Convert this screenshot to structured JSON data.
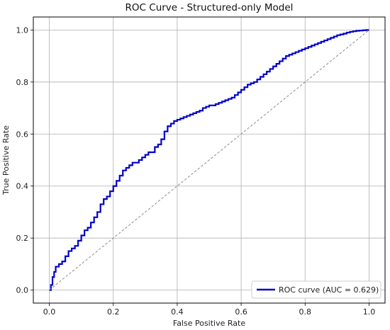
{
  "chart_data": {
    "type": "line",
    "title": "ROC Curve - Structured-only Model",
    "xlabel": "False Positive Rate",
    "ylabel": "True Positive Rate",
    "xlim": [
      -0.05,
      1.05
    ],
    "ylim": [
      -0.05,
      1.05
    ],
    "xticks": [
      "0.0",
      "0.2",
      "0.4",
      "0.6",
      "0.8",
      "1.0"
    ],
    "yticks": [
      "0.0",
      "0.2",
      "0.4",
      "0.6",
      "0.8",
      "1.0"
    ],
    "grid": true,
    "legend_position": "lower-right",
    "colors": {
      "roc": "#0000cc",
      "chance": "#808080"
    },
    "series": [
      {
        "name": "ROC curve (AUC = 0.629)",
        "style": "solid",
        "x": [
          0.0,
          0.005,
          0.01,
          0.015,
          0.02,
          0.03,
          0.04,
          0.05,
          0.06,
          0.07,
          0.08,
          0.09,
          0.1,
          0.11,
          0.12,
          0.13,
          0.14,
          0.15,
          0.16,
          0.17,
          0.18,
          0.19,
          0.2,
          0.21,
          0.22,
          0.23,
          0.24,
          0.25,
          0.26,
          0.27,
          0.28,
          0.29,
          0.3,
          0.31,
          0.32,
          0.33,
          0.34,
          0.35,
          0.36,
          0.37,
          0.38,
          0.39,
          0.4,
          0.41,
          0.42,
          0.43,
          0.44,
          0.45,
          0.46,
          0.47,
          0.48,
          0.49,
          0.5,
          0.51,
          0.52,
          0.53,
          0.54,
          0.55,
          0.56,
          0.57,
          0.58,
          0.59,
          0.6,
          0.61,
          0.62,
          0.63,
          0.64,
          0.65,
          0.66,
          0.67,
          0.68,
          0.69,
          0.7,
          0.71,
          0.72,
          0.73,
          0.74,
          0.75,
          0.76,
          0.77,
          0.78,
          0.79,
          0.8,
          0.81,
          0.82,
          0.83,
          0.84,
          0.85,
          0.86,
          0.87,
          0.88,
          0.89,
          0.9,
          0.91,
          0.92,
          0.93,
          0.94,
          0.95,
          0.96,
          0.97,
          0.98,
          0.99,
          1.0
        ],
        "y": [
          0.0,
          0.02,
          0.05,
          0.07,
          0.09,
          0.1,
          0.11,
          0.13,
          0.15,
          0.16,
          0.17,
          0.19,
          0.21,
          0.23,
          0.24,
          0.26,
          0.28,
          0.3,
          0.33,
          0.35,
          0.36,
          0.38,
          0.4,
          0.42,
          0.44,
          0.46,
          0.47,
          0.48,
          0.49,
          0.49,
          0.5,
          0.51,
          0.52,
          0.53,
          0.53,
          0.55,
          0.56,
          0.58,
          0.61,
          0.63,
          0.64,
          0.65,
          0.655,
          0.66,
          0.665,
          0.67,
          0.675,
          0.68,
          0.685,
          0.69,
          0.7,
          0.705,
          0.71,
          0.71,
          0.715,
          0.72,
          0.725,
          0.73,
          0.735,
          0.74,
          0.75,
          0.76,
          0.77,
          0.78,
          0.79,
          0.795,
          0.8,
          0.81,
          0.82,
          0.83,
          0.84,
          0.85,
          0.86,
          0.87,
          0.88,
          0.89,
          0.9,
          0.905,
          0.91,
          0.915,
          0.92,
          0.925,
          0.93,
          0.935,
          0.94,
          0.945,
          0.95,
          0.955,
          0.96,
          0.965,
          0.97,
          0.975,
          0.98,
          0.983,
          0.986,
          0.99,
          0.993,
          0.995,
          0.997,
          0.998,
          0.999,
          1.0,
          1.0
        ]
      },
      {
        "name": "",
        "style": "dashed",
        "x": [
          0.0,
          1.0
        ],
        "y": [
          0.0,
          1.0
        ]
      }
    ]
  }
}
